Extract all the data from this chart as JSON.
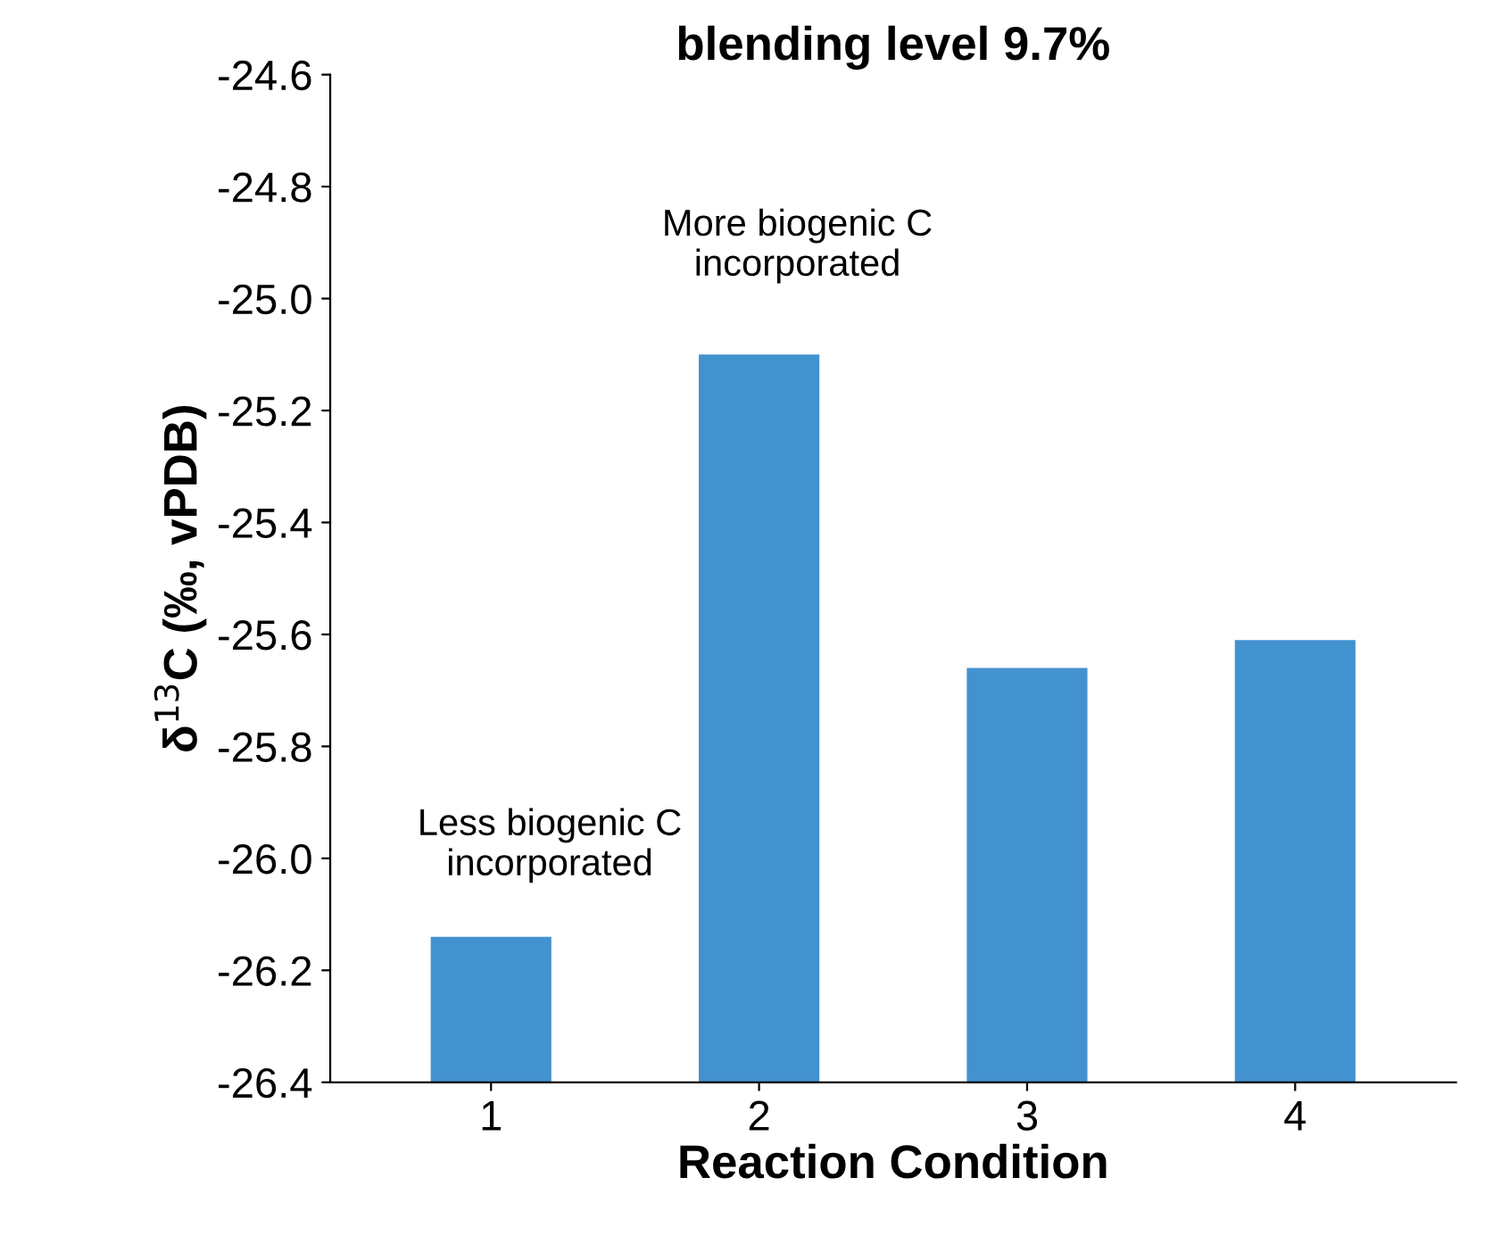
{
  "chart_data": {
    "type": "bar",
    "title": "blending level 9.7%",
    "xlabel": "Reaction Condition",
    "ylabel": "δ$^{13}$C (‰, vPDB)",
    "categories": [
      "1",
      "2",
      "3",
      "4"
    ],
    "base": [
      -26.4,
      -26.4,
      -26.4,
      -26.4
    ],
    "values": [
      0.26,
      1.3,
      0.74,
      0.79
    ],
    "color": "#4392d0",
    "ylim": [
      -26.4,
      -24.6
    ],
    "yticks": [
      -26.4,
      -26.2,
      {
        "value": -26,
        "label": "-26.0"
      },
      -25.8,
      -25.6,
      -25.4,
      -25.2,
      {
        "value": -25,
        "label": "-25.0"
      },
      -24.8,
      -24.6
    ],
    "annotations": [
      "Less biogenic C\nincorporated",
      "More biogenic C\nincorporated"
    ],
    "grid": false,
    "legend": false
  }
}
